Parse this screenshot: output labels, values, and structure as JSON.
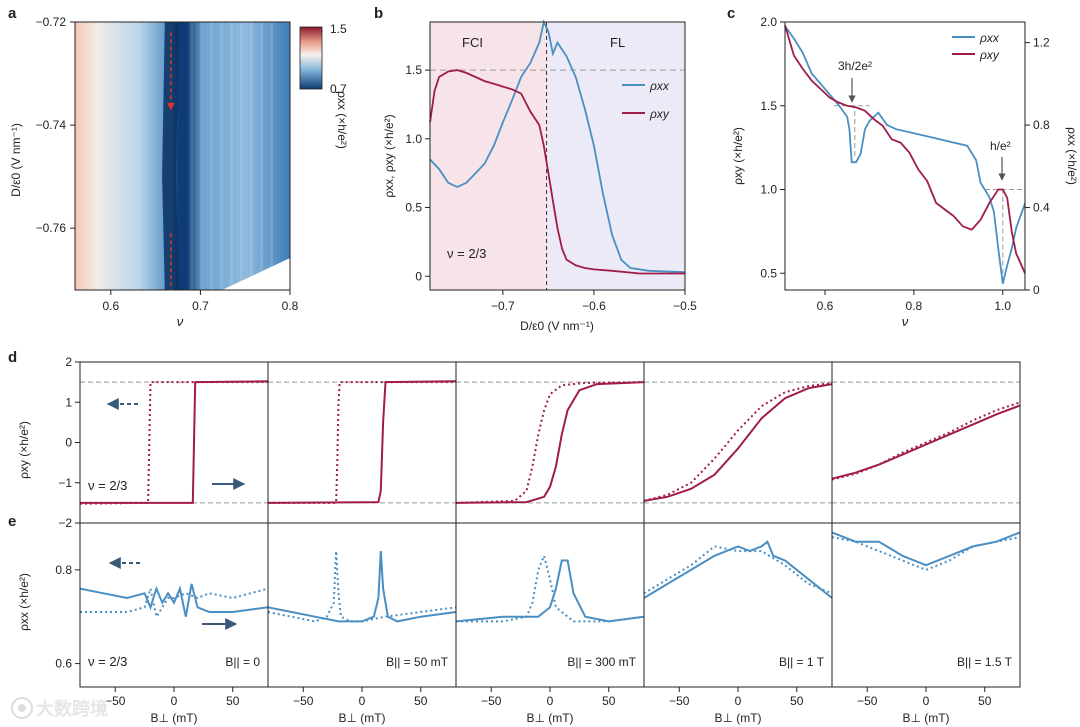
{
  "colors": {
    "xx": "#4a8fc4",
    "xy": "#a01c4a",
    "fci_bg": "#f7e4e8",
    "fl_bg": "#eceaf6"
  },
  "panel_labels": [
    "a",
    "b",
    "c",
    "d",
    "e"
  ],
  "watermark": {
    "icon": "brand-logo-icon",
    "text": "大数跨境"
  },
  "chart_data": [
    {
      "panel": "a",
      "type": "heatmap",
      "xlabel": "ν",
      "ylabel": "D/ε0 (V nm⁻¹)",
      "xlim": [
        0.56,
        0.8
      ],
      "ylim": [
        -0.772,
        -0.72
      ],
      "xticks": [
        "0.6",
        "0.7",
        "0.8"
      ],
      "yticks": [
        "−0.72",
        "−0.74",
        "−0.76"
      ],
      "colorbar": {
        "label": "ρxx (×h/e²)",
        "range": [
          0.7,
          1.5
        ],
        "ticks": [
          "1.5",
          "0.7"
        ]
      },
      "min_valley": [
        [
          0.668,
          -0.72
        ],
        [
          0.665,
          -0.75
        ],
        [
          0.668,
          -0.772
        ]
      ],
      "marker_arrows": {
        "at_nu": 0.667,
        "from": -0.722,
        "to": -0.737,
        "from2": -0.761,
        "to2": -0.772,
        "color": "#e03030"
      }
    },
    {
      "panel": "b",
      "type": "line",
      "xlabel": "D/ε0 (V nm⁻¹)",
      "ylabel": "ρxx, ρxy (×h/e²)",
      "xlim": [
        -0.78,
        -0.5
      ],
      "ylim": [
        -0.1,
        1.85
      ],
      "xticks": [
        "−0.7",
        "−0.6",
        "−0.5"
      ],
      "yticks": [
        "0",
        "0.5",
        "1.0",
        "1.5"
      ],
      "regions": [
        "FCI",
        "FL"
      ],
      "boundary_x": -0.652,
      "hline": 1.5,
      "annotation": "ν = 2/3",
      "series": [
        {
          "name": "ρxx",
          "x": [
            -0.78,
            -0.77,
            -0.76,
            -0.75,
            -0.74,
            -0.73,
            -0.72,
            -0.71,
            -0.7,
            -0.69,
            -0.68,
            -0.67,
            -0.66,
            -0.655,
            -0.65,
            -0.645,
            -0.64,
            -0.63,
            -0.62,
            -0.61,
            -0.6,
            -0.59,
            -0.58,
            -0.57,
            -0.56,
            -0.54,
            -0.5
          ],
          "y": [
            0.85,
            0.78,
            0.68,
            0.65,
            0.68,
            0.75,
            0.82,
            0.95,
            1.12,
            1.28,
            1.45,
            1.55,
            1.7,
            1.85,
            1.78,
            1.62,
            1.7,
            1.6,
            1.45,
            1.22,
            0.95,
            0.6,
            0.3,
            0.12,
            0.06,
            0.04,
            0.03
          ]
        },
        {
          "name": "ρxy",
          "x": [
            -0.78,
            -0.775,
            -0.77,
            -0.76,
            -0.75,
            -0.74,
            -0.73,
            -0.72,
            -0.71,
            -0.7,
            -0.69,
            -0.68,
            -0.67,
            -0.66,
            -0.655,
            -0.65,
            -0.645,
            -0.64,
            -0.635,
            -0.63,
            -0.62,
            -0.61,
            -0.6,
            -0.58,
            -0.55,
            -0.5
          ],
          "y": [
            1.12,
            1.35,
            1.45,
            1.49,
            1.5,
            1.48,
            1.45,
            1.42,
            1.4,
            1.38,
            1.36,
            1.33,
            1.2,
            1.1,
            0.95,
            0.75,
            0.55,
            0.35,
            0.2,
            0.12,
            0.08,
            0.06,
            0.05,
            0.04,
            0.02,
            0.02
          ]
        }
      ]
    },
    {
      "panel": "c",
      "type": "line",
      "xlabel": "ν",
      "ylabel": "ρxy (×h/e²)",
      "ylabel_right": "ρxx (×h/e²)",
      "xlim": [
        0.51,
        1.05
      ],
      "ylim": [
        0.4,
        2.0
      ],
      "ylim_right": [
        0,
        1.3
      ],
      "xticks": [
        "0.6",
        "0.8",
        "1.0"
      ],
      "yticks": [
        "0.5",
        "1.0",
        "1.5",
        "2.0"
      ],
      "yticks_right": [
        "0",
        "0.4",
        "0.8",
        "1.2"
      ],
      "annotations": [
        "3h/2e²",
        "h/e²"
      ],
      "hlines": [
        {
          "y": 1.5,
          "x": [
            0.62,
            0.7
          ]
        },
        {
          "y": 1.0,
          "x": [
            0.96,
            1.05
          ]
        }
      ],
      "vlines": [
        {
          "x": 0.667,
          "y": [
            1.2,
            1.5
          ]
        },
        {
          "x": 1.0,
          "y": [
            0.45,
            1.0
          ]
        }
      ],
      "series": [
        {
          "name": "ρxx",
          "axis": "right",
          "x": [
            0.51,
            0.53,
            0.55,
            0.57,
            0.59,
            0.61,
            0.63,
            0.65,
            0.655,
            0.66,
            0.665,
            0.67,
            0.68,
            0.69,
            0.7,
            0.72,
            0.74,
            0.76,
            0.8,
            0.84,
            0.88,
            0.92,
            0.94,
            0.95,
            0.97,
            0.98,
            0.99,
            1.0,
            1.01,
            1.02,
            1.03,
            1.05
          ],
          "y": [
            1.28,
            1.22,
            1.15,
            1.05,
            1.0,
            0.95,
            0.9,
            0.84,
            0.78,
            0.62,
            0.62,
            0.62,
            0.66,
            0.78,
            0.82,
            0.86,
            0.8,
            0.78,
            0.76,
            0.74,
            0.72,
            0.7,
            0.63,
            0.52,
            0.45,
            0.38,
            0.2,
            0.03,
            0.12,
            0.2,
            0.3,
            0.42
          ]
        },
        {
          "name": "ρxy",
          "axis": "left",
          "x": [
            0.51,
            0.53,
            0.55,
            0.57,
            0.59,
            0.61,
            0.63,
            0.65,
            0.67,
            0.69,
            0.71,
            0.73,
            0.75,
            0.77,
            0.79,
            0.81,
            0.83,
            0.85,
            0.87,
            0.89,
            0.91,
            0.93,
            0.95,
            0.97,
            0.99,
            1.0,
            1.01,
            1.02,
            1.03,
            1.05
          ],
          "y": [
            1.98,
            1.8,
            1.72,
            1.65,
            1.6,
            1.55,
            1.52,
            1.5,
            1.49,
            1.47,
            1.42,
            1.38,
            1.3,
            1.28,
            1.22,
            1.12,
            1.05,
            0.92,
            0.88,
            0.84,
            0.78,
            0.76,
            0.82,
            0.92,
            1.0,
            1.0,
            0.95,
            0.75,
            0.62,
            0.5
          ]
        }
      ]
    },
    {
      "panel": "d",
      "type": "line",
      "xlabel": "B⊥ (mT)",
      "ylabel": "ρxy (×h/e²)",
      "xlim": [
        -80,
        80
      ],
      "ylim": [
        -2,
        2
      ],
      "yticks": [
        "2",
        "1",
        "0",
        "−1",
        "−2"
      ],
      "xticks": [
        "−50",
        "0",
        "50"
      ],
      "hlines": [
        1.5,
        -1.5
      ],
      "annotation": "ν = 2/3",
      "sweeps": [
        "dashed: field swept down",
        "solid: field swept up"
      ],
      "subplots": [
        {
          "title": "B|| = 0",
          "up_x": [
            -80,
            16,
            17,
            18,
            80
          ],
          "up_y": [
            -1.5,
            -1.5,
            0.0,
            1.5,
            1.52
          ],
          "down_x": [
            -80,
            -22,
            -21,
            -20,
            80
          ],
          "down_y": [
            -1.52,
            -1.5,
            0.0,
            1.5,
            1.5
          ]
        },
        {
          "title": "B|| = 50 mT",
          "up_x": [
            -80,
            14,
            16,
            18,
            20,
            80
          ],
          "up_y": [
            -1.5,
            -1.48,
            -1.2,
            0.5,
            1.5,
            1.52
          ],
          "down_x": [
            -80,
            -22,
            -21,
            -20,
            -19,
            80
          ],
          "down_y": [
            -1.5,
            -1.5,
            -0.5,
            1.0,
            1.5,
            1.5
          ]
        },
        {
          "title": "B|| = 300 mT",
          "up_x": [
            -80,
            -20,
            -5,
            0,
            5,
            10,
            15,
            25,
            40,
            80
          ],
          "up_y": [
            -1.5,
            -1.48,
            -1.35,
            -1.1,
            -0.6,
            0.2,
            0.8,
            1.3,
            1.45,
            1.5
          ],
          "down_x": [
            -80,
            -30,
            -20,
            -15,
            -10,
            -5,
            0,
            10,
            30,
            80
          ],
          "down_y": [
            -1.5,
            -1.45,
            -1.2,
            -0.6,
            0.2,
            0.8,
            1.2,
            1.42,
            1.48,
            1.5
          ]
        },
        {
          "title": "B|| = 1 T",
          "up_x": [
            -80,
            -60,
            -40,
            -20,
            0,
            20,
            40,
            60,
            80
          ],
          "up_y": [
            -1.45,
            -1.35,
            -1.15,
            -0.8,
            -0.15,
            0.6,
            1.1,
            1.35,
            1.45
          ],
          "down_x": [
            -80,
            -60,
            -40,
            -20,
            0,
            20,
            40,
            60,
            80
          ],
          "down_y": [
            -1.45,
            -1.3,
            -1.0,
            -0.4,
            0.3,
            0.9,
            1.25,
            1.4,
            1.48
          ]
        },
        {
          "title": "B|| = 1.5 T",
          "up_x": [
            -80,
            -60,
            -40,
            -20,
            0,
            20,
            40,
            60,
            80
          ],
          "up_y": [
            -0.9,
            -0.75,
            -0.55,
            -0.3,
            -0.05,
            0.2,
            0.45,
            0.7,
            0.92
          ],
          "down_x": [
            -80,
            -60,
            -40,
            -20,
            0,
            20,
            40,
            60,
            80
          ],
          "down_y": [
            -0.92,
            -0.78,
            -0.55,
            -0.25,
            0.0,
            0.25,
            0.55,
            0.8,
            1.0
          ]
        }
      ]
    },
    {
      "panel": "e",
      "type": "line",
      "xlabel": "B⊥ (mT)",
      "ylabel": "ρxx (×h/e²)",
      "xlim": [
        -80,
        80
      ],
      "ylim": [
        0.55,
        0.9
      ],
      "yticks": [
        "0.8",
        "0.6"
      ],
      "xticks": [
        "−50",
        "0",
        "50"
      ],
      "annotation": "ν = 2/3",
      "subplots": [
        {
          "title": "B|| = 0",
          "up_x": [
            -80,
            -60,
            -40,
            -25,
            -20,
            -15,
            -10,
            -5,
            0,
            5,
            10,
            15,
            20,
            30,
            50,
            80
          ],
          "up_y": [
            0.76,
            0.75,
            0.74,
            0.75,
            0.72,
            0.76,
            0.73,
            0.75,
            0.73,
            0.76,
            0.7,
            0.77,
            0.72,
            0.71,
            0.71,
            0.72
          ],
          "down_x": [
            -80,
            -60,
            -40,
            -25,
            -20,
            -15,
            -10,
            -5,
            0,
            10,
            20,
            30,
            50,
            80
          ],
          "down_y": [
            0.71,
            0.71,
            0.71,
            0.72,
            0.76,
            0.7,
            0.72,
            0.74,
            0.74,
            0.75,
            0.74,
            0.75,
            0.74,
            0.76
          ]
        },
        {
          "title": "B|| = 50 mT",
          "up_x": [
            -80,
            -60,
            -40,
            -20,
            0,
            10,
            14,
            16,
            18,
            22,
            30,
            50,
            80
          ],
          "up_y": [
            0.72,
            0.71,
            0.7,
            0.69,
            0.69,
            0.7,
            0.74,
            0.84,
            0.76,
            0.7,
            0.69,
            0.7,
            0.71
          ],
          "down_x": [
            -80,
            -60,
            -40,
            -30,
            -24,
            -22,
            -20,
            -18,
            -10,
            0,
            20,
            50,
            80
          ],
          "down_y": [
            0.71,
            0.7,
            0.69,
            0.7,
            0.73,
            0.84,
            0.75,
            0.7,
            0.69,
            0.69,
            0.7,
            0.71,
            0.72
          ]
        },
        {
          "title": "B|| = 300 mT",
          "up_x": [
            -80,
            -40,
            -10,
            0,
            5,
            10,
            15,
            20,
            30,
            50,
            80
          ],
          "up_y": [
            0.69,
            0.7,
            0.7,
            0.72,
            0.76,
            0.82,
            0.82,
            0.75,
            0.7,
            0.69,
            0.7
          ],
          "down_x": [
            -80,
            -40,
            -20,
            -15,
            -10,
            -5,
            0,
            5,
            20,
            50,
            80
          ],
          "down_y": [
            0.69,
            0.69,
            0.7,
            0.73,
            0.8,
            0.83,
            0.78,
            0.72,
            0.69,
            0.69,
            0.7
          ]
        },
        {
          "title": "B|| = 1 T",
          "up_x": [
            -80,
            -60,
            -40,
            -20,
            0,
            10,
            20,
            25,
            30,
            40,
            60,
            80
          ],
          "up_y": [
            0.74,
            0.77,
            0.8,
            0.83,
            0.85,
            0.84,
            0.85,
            0.86,
            0.83,
            0.82,
            0.78,
            0.74
          ],
          "down_x": [
            -80,
            -60,
            -40,
            -20,
            0,
            20,
            40,
            60,
            80
          ],
          "down_y": [
            0.75,
            0.78,
            0.81,
            0.85,
            0.84,
            0.84,
            0.81,
            0.77,
            0.75
          ]
        },
        {
          "title": "B|| = 1.5 T",
          "up_x": [
            -80,
            -60,
            -40,
            -20,
            0,
            20,
            40,
            60,
            80
          ],
          "up_y": [
            0.88,
            0.86,
            0.86,
            0.83,
            0.81,
            0.83,
            0.85,
            0.86,
            0.88
          ],
          "down_x": [
            -80,
            -60,
            -40,
            -20,
            0,
            20,
            40,
            60,
            80
          ],
          "down_y": [
            0.87,
            0.86,
            0.84,
            0.82,
            0.8,
            0.82,
            0.85,
            0.86,
            0.87
          ]
        }
      ]
    }
  ]
}
